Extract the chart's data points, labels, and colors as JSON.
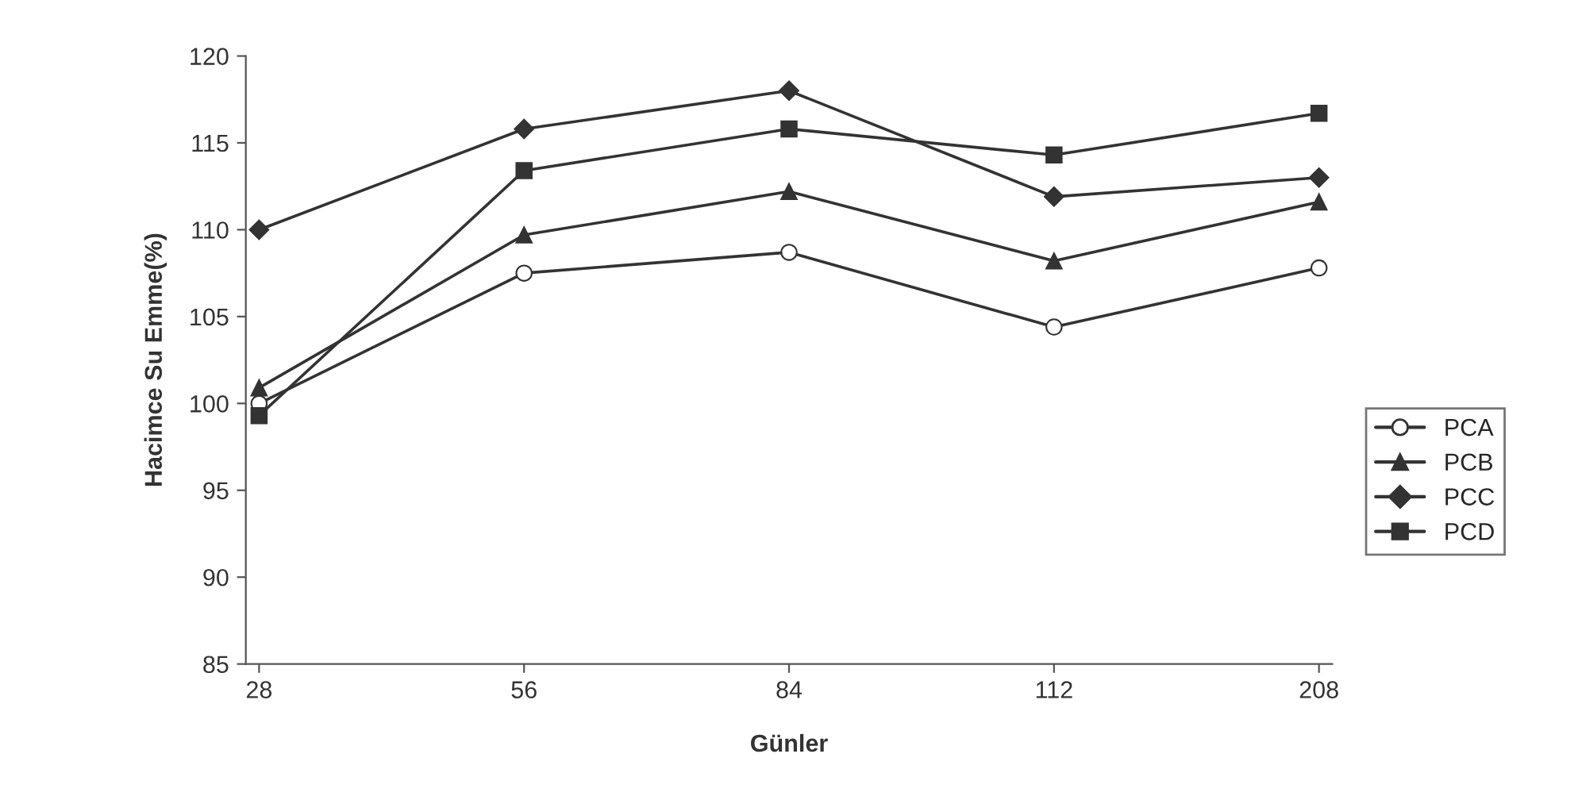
{
  "chart_data": {
    "type": "line",
    "xlabel": "Günler",
    "ylabel": "Hacimce Su Emme(%)",
    "categories": [
      "28",
      "56",
      "84",
      "112",
      "208"
    ],
    "series": [
      {
        "name": "PCA",
        "color": "#333333",
        "marker": "circle",
        "values": [
          100,
          107.5,
          108.7,
          104.4,
          107.8
        ]
      },
      {
        "name": "PCB",
        "color": "#333333",
        "marker": "triangle",
        "values": [
          100.9,
          109.7,
          112.2,
          108.2,
          111.6
        ]
      },
      {
        "name": "PCC",
        "color": "#333333",
        "marker": "diamond",
        "values": [
          110,
          115.8,
          118,
          111.9,
          113
        ]
      },
      {
        "name": "PCD",
        "color": "#333333",
        "marker": "square",
        "values": [
          99.3,
          113.4,
          115.8,
          114.3,
          116.7
        ]
      }
    ],
    "ylim": [
      85,
      120
    ],
    "yticks": [
      85,
      90,
      95,
      100,
      105,
      110,
      115,
      120
    ],
    "grid": false,
    "legend": "right",
    "line_style": "solid"
  }
}
